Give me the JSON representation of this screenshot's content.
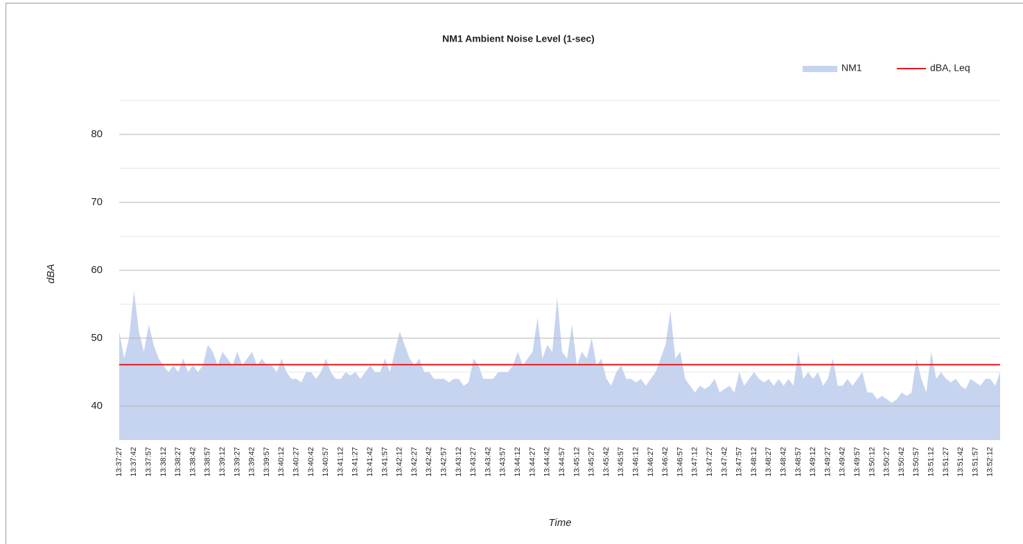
{
  "chart_data": {
    "type": "area",
    "title": "NM1 Ambient Noise Level (1-sec)",
    "x_label": "Time",
    "y_label": "dBA",
    "categories": [
      "13:37:27",
      null,
      null,
      "13:37:42",
      null,
      null,
      "13:37:57",
      null,
      null,
      "13:38:12",
      null,
      null,
      "13:38:27",
      null,
      null,
      "13:38:42",
      null,
      null,
      "13:38:57",
      null,
      null,
      "13:39:12",
      null,
      null,
      "13:39:27",
      null,
      null,
      "13:39:42",
      null,
      null,
      "13:39:57",
      null,
      null,
      "13:40:12",
      null,
      null,
      "13:40:27",
      null,
      null,
      "13:40:42",
      null,
      null,
      "13:40:57",
      null,
      null,
      "13:41:12",
      null,
      null,
      "13:41:27",
      null,
      null,
      "13:41:42",
      null,
      null,
      "13:41:57",
      null,
      null,
      "13:42:12",
      null,
      null,
      "13:42:27",
      null,
      null,
      "13:42:42",
      null,
      null,
      "13:42:57",
      null,
      null,
      "13:43:12",
      null,
      null,
      "13:43:27",
      null,
      null,
      "13:43:42",
      null,
      null,
      "13:43:57",
      null,
      null,
      "13:44:12",
      null,
      null,
      "13:44:27",
      null,
      null,
      "13:44:42",
      null,
      null,
      "13:44:57",
      null,
      null,
      "13:45:12",
      null,
      null,
      "13:45:27",
      null,
      null,
      "13:45:42",
      null,
      null,
      "13:45:57",
      null,
      null,
      "13:46:12",
      null,
      null,
      "13:46:27",
      null,
      null,
      "13:46:42",
      null,
      null,
      "13:46:57",
      null,
      null,
      "13:47:12",
      null,
      null,
      "13:47:27",
      null,
      null,
      "13:47:42",
      null,
      null,
      "13:47:57",
      null,
      null,
      "13:48:12",
      null,
      null,
      "13:48:27",
      null,
      null,
      "13:48:42",
      null,
      null,
      "13:48:57",
      null,
      null,
      "13:49:12",
      null,
      null,
      "13:49:27",
      null,
      null,
      "13:49:42",
      null,
      null,
      "13:49:57",
      null,
      null,
      "13:50:12",
      null,
      null,
      "13:50:27",
      null,
      null,
      "13:50:42",
      null,
      null,
      "13:50:57",
      null,
      null,
      "13:51:12",
      null,
      null,
      "13:51:27",
      null,
      null,
      "13:51:42",
      null,
      null,
      "13:51:57",
      null,
      null,
      "13:52:12",
      null,
      null
    ],
    "series": [
      {
        "name": "NM1",
        "color": "#c6d4ef",
        "type": "area",
        "values": [
          51,
          47,
          50,
          57,
          51,
          48,
          52,
          49,
          47,
          46,
          45,
          46,
          45,
          47,
          45,
          46,
          45,
          46,
          49,
          48,
          46,
          48,
          47,
          46,
          48,
          46,
          47,
          48,
          46,
          47,
          46,
          46,
          45,
          47,
          45,
          44,
          44,
          43.5,
          45,
          45,
          44,
          45,
          47,
          45,
          44,
          44,
          45,
          44.5,
          45,
          44,
          45,
          46,
          45,
          45,
          47,
          45,
          48,
          51,
          49,
          47,
          46,
          47,
          45,
          45,
          44,
          44,
          44,
          43.5,
          44,
          44,
          43,
          43.5,
          47,
          46,
          44,
          44,
          44,
          45,
          45,
          45,
          46,
          48,
          46,
          47,
          48,
          53,
          47,
          49,
          48,
          56,
          48,
          47,
          52,
          46,
          48,
          47,
          50,
          46,
          47,
          44,
          43,
          45,
          46,
          44,
          44,
          43.5,
          44,
          43,
          44,
          45,
          47,
          49,
          54,
          47,
          48,
          44,
          43,
          42,
          43,
          42.5,
          43,
          44,
          42,
          42.5,
          43,
          42,
          45,
          43,
          44,
          45,
          44,
          43.5,
          44,
          43,
          44,
          43,
          44,
          43,
          48,
          44,
          45,
          44,
          45,
          43,
          44,
          47,
          43,
          43,
          44,
          43,
          44,
          45,
          42,
          42,
          41,
          41.5,
          41,
          40.5,
          41,
          42,
          41.5,
          42,
          47,
          44,
          42,
          48,
          44,
          45,
          44,
          43.5,
          44,
          43,
          42.5,
          44,
          43.5,
          43,
          44,
          44,
          43,
          45
        ]
      },
      {
        "name": "dBA, Leq",
        "color": "#e8161b",
        "type": "hline",
        "value": 46.1
      }
    ],
    "ylim": [
      35,
      85
    ],
    "yticks": [
      40,
      50,
      60,
      70,
      80
    ],
    "minor_yticks": [
      45,
      55,
      65,
      75,
      85
    ],
    "grid": true,
    "legend": "top-right"
  }
}
